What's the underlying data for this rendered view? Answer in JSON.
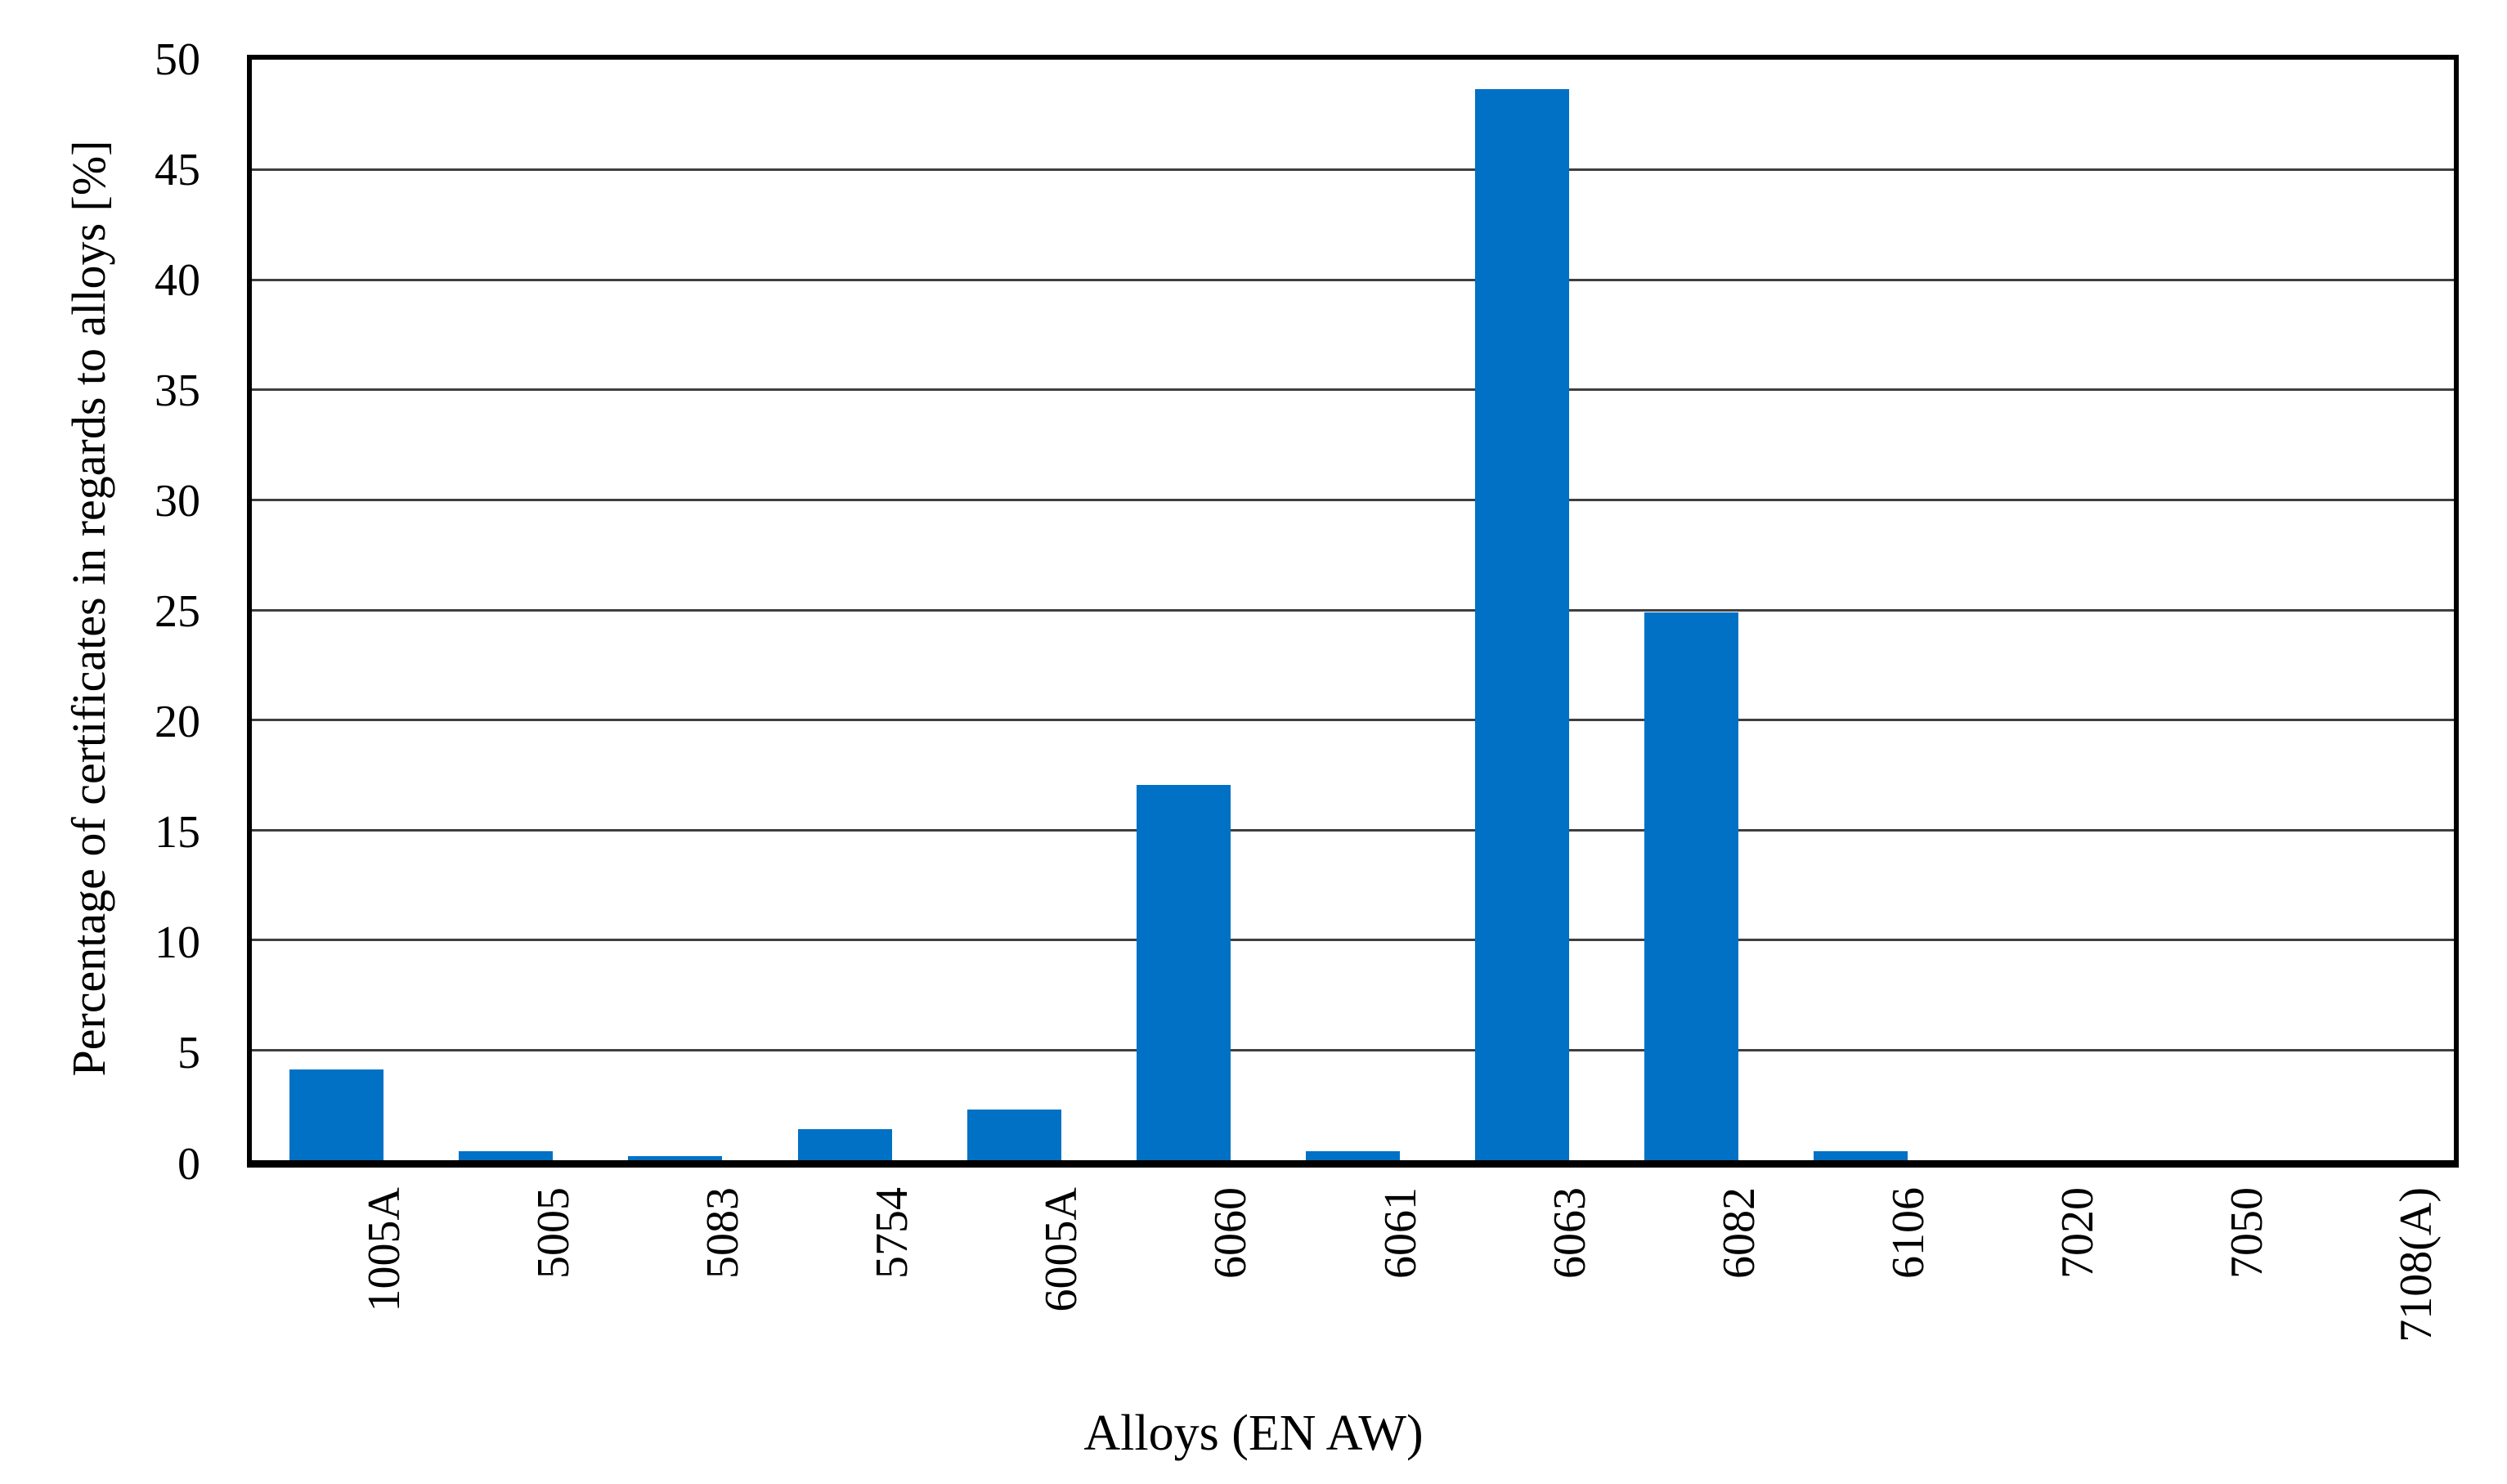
{
  "chart_data": {
    "type": "bar",
    "title": "",
    "xlabel": "Alloys (EN AW)",
    "ylabel": "Percentage of certificates in regards to alloys [%]",
    "categories": [
      "1005A",
      "5005",
      "5083",
      "5754",
      "6005A",
      "6060",
      "6061",
      "6063",
      "6082",
      "6106",
      "7020",
      "7050",
      "7108(A)"
    ],
    "values": [
      4.1,
      0.4,
      0.2,
      1.4,
      2.3,
      17.0,
      0.4,
      48.5,
      24.8,
      0.4,
      0,
      0,
      0
    ],
    "ylim": [
      0,
      50
    ],
    "yticks": [
      0,
      5,
      10,
      15,
      20,
      25,
      30,
      35,
      40,
      45,
      50
    ],
    "grid": "horizontal",
    "legend": "none",
    "bar_color": "#0071C5",
    "gridline_color": "#3F3F3F",
    "axis_color": "#000000",
    "background_color": "#FFFFFF"
  }
}
